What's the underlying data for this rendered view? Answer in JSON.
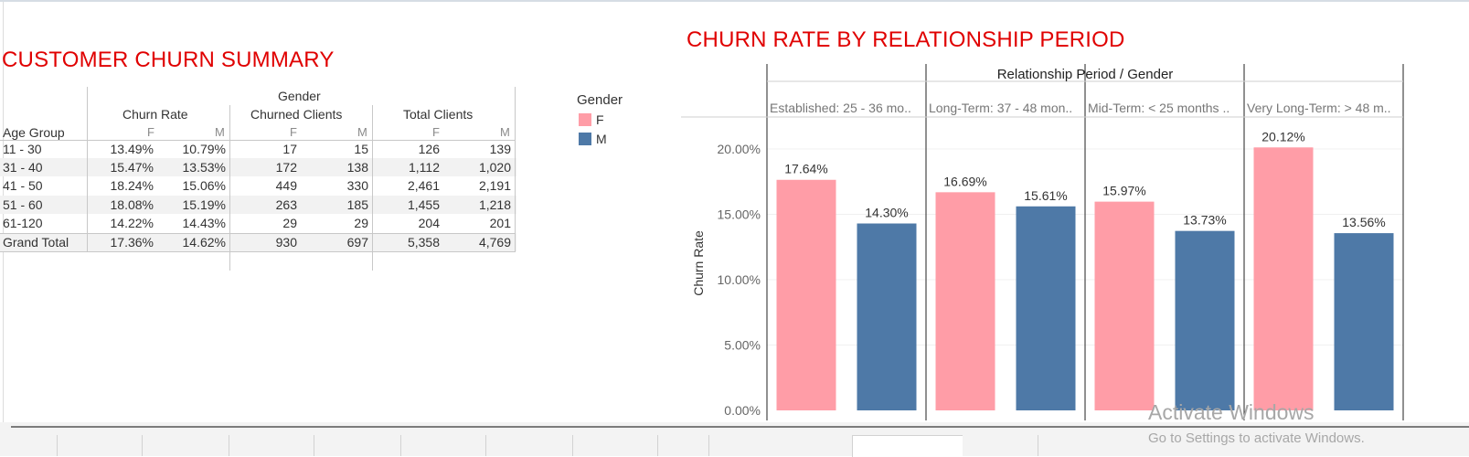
{
  "summary": {
    "title": "CUSTOMER CHURN SUMMARY",
    "header": {
      "gender": "Gender",
      "age_group": "Age Group",
      "churn_rate": "Churn Rate",
      "churned_clients": "Churned Clients",
      "total_clients": "Total Clients",
      "f": "F",
      "m": "M"
    },
    "rows": [
      {
        "age": "11 - 30",
        "cr_f": "13.49%",
        "cr_m": "10.79%",
        "ch_f": "17",
        "ch_m": "15",
        "tot_f": "126",
        "tot_m": "139"
      },
      {
        "age": "31 - 40",
        "cr_f": "15.47%",
        "cr_m": "13.53%",
        "ch_f": "172",
        "ch_m": "138",
        "tot_f": "1,112",
        "tot_m": "1,020"
      },
      {
        "age": "41 - 50",
        "cr_f": "18.24%",
        "cr_m": "15.06%",
        "ch_f": "449",
        "ch_m": "330",
        "tot_f": "2,461",
        "tot_m": "2,191"
      },
      {
        "age": "51 - 60",
        "cr_f": "18.08%",
        "cr_m": "15.19%",
        "ch_f": "263",
        "ch_m": "185",
        "tot_f": "1,455",
        "tot_m": "1,218"
      },
      {
        "age": "61-120",
        "cr_f": "14.22%",
        "cr_m": "14.43%",
        "ch_f": "29",
        "ch_m": "29",
        "tot_f": "204",
        "tot_m": "201"
      },
      {
        "age": "Grand Total",
        "cr_f": "17.36%",
        "cr_m": "14.62%",
        "ch_f": "930",
        "ch_m": "697",
        "tot_f": "5,358",
        "tot_m": "4,769"
      }
    ]
  },
  "legend": {
    "title": "Gender",
    "items": [
      {
        "label": "F",
        "color": "#ff9da7"
      },
      {
        "label": "M",
        "color": "#4e79a7"
      }
    ]
  },
  "chart_title": "CHURN RATE BY RELATIONSHIP PERIOD",
  "chart_data": {
    "type": "bar",
    "title": "CHURN RATE BY RELATIONSHIP PERIOD",
    "header": "Relationship Period  /  Gender",
    "ylabel": "Churn Rate",
    "ylim": [
      0,
      0.2
    ],
    "y_ticks": [
      {
        "value": 0.2,
        "label": "20.00%"
      },
      {
        "value": 0.15,
        "label": "15.00%"
      },
      {
        "value": 0.1,
        "label": "10.00%"
      },
      {
        "value": 0.05,
        "label": "5.00%"
      },
      {
        "value": 0.0,
        "label": "0.00%"
      }
    ],
    "groups": [
      {
        "label": "Established: 25 - 36 mo..",
        "bars": [
          {
            "gender": "F",
            "value": 0.1764,
            "label": "17.64%"
          },
          {
            "gender": "M",
            "value": 0.143,
            "label": "14.30%"
          }
        ]
      },
      {
        "label": "Long-Term: 37 - 48 mon..",
        "bars": [
          {
            "gender": "F",
            "value": 0.1669,
            "label": "16.69%"
          },
          {
            "gender": "M",
            "value": 0.1561,
            "label": "15.61%"
          }
        ]
      },
      {
        "label": "Mid-Term: < 25 months ..",
        "bars": [
          {
            "gender": "F",
            "value": 0.1597,
            "label": "15.97%"
          },
          {
            "gender": "M",
            "value": 0.1373,
            "label": "13.73%"
          }
        ]
      },
      {
        "label": "Very Long-Term: > 48 m..",
        "bars": [
          {
            "gender": "F",
            "value": 0.2012,
            "label": "20.12%"
          },
          {
            "gender": "M",
            "value": 0.1356,
            "label": "13.56%"
          }
        ]
      }
    ],
    "colors": {
      "F": "#ff9da7",
      "M": "#4e79a7"
    },
    "grid": true
  },
  "watermark": {
    "line1": "Activate Windows",
    "line2": "Go to Settings to activate Windows."
  }
}
